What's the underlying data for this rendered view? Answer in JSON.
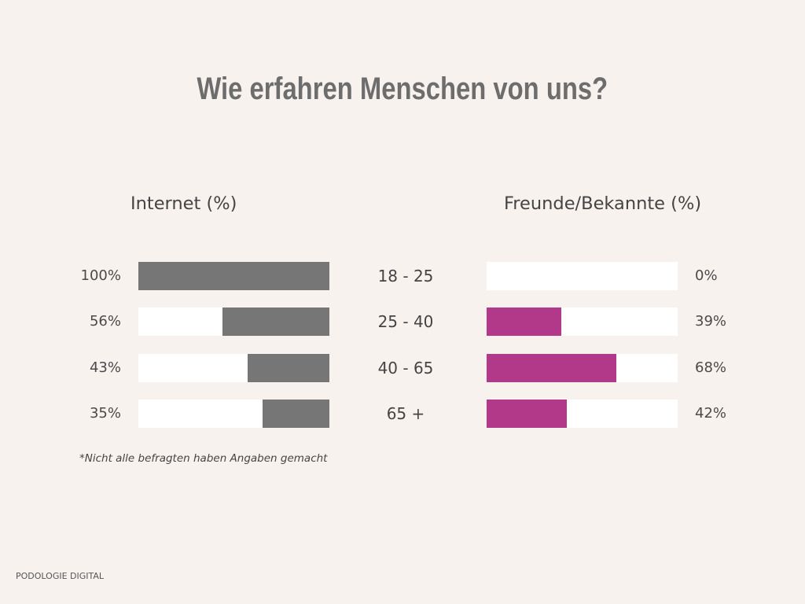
{
  "colors": {
    "background": "#f8f2ef",
    "title": "#6d6d6d",
    "track": "#ffffff",
    "text": "#4a4a4a"
  },
  "chart_data": {
    "type": "bar",
    "orientation": "horizontal",
    "layout": "diverging",
    "title": "Wie erfahren Menschen von uns?",
    "categories": [
      "18 - 25",
      "25 - 40",
      "40 - 65",
      "65 +"
    ],
    "series": [
      {
        "name": "Internet (%)",
        "values": [
          100,
          56,
          43,
          35
        ],
        "labels": [
          "100%",
          "56%",
          "43%",
          "35%"
        ],
        "color": "#767676"
      },
      {
        "name": "Freunde/Bekannte (%)",
        "values": [
          0,
          39,
          68,
          42
        ],
        "labels": [
          "0%",
          "39%",
          "68%",
          "42%"
        ],
        "color": "#b2398a"
      }
    ],
    "xlim": [
      0,
      100
    ],
    "grid": false,
    "annotations": [
      "*Nicht alle befragten haben Angaben gemacht"
    ]
  },
  "footer": {
    "brand": "PODOLOGIE DIGITAL"
  }
}
